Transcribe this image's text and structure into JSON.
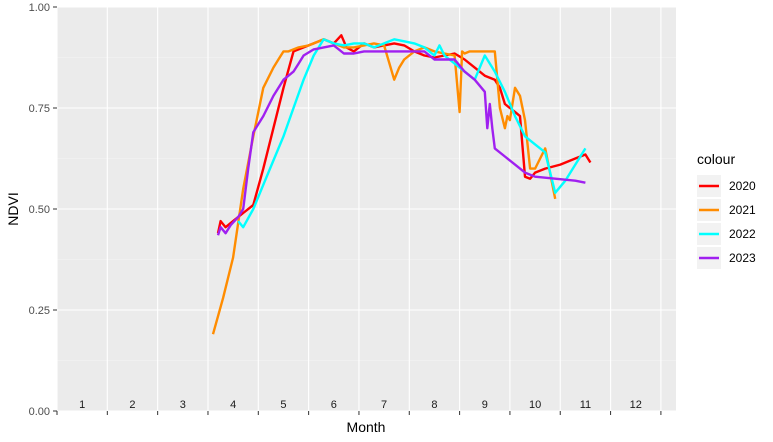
{
  "chart_data": {
    "type": "line",
    "xlabel": "Month",
    "ylabel": "NDVI",
    "xlim": [
      0.5,
      12.8
    ],
    "ylim": [
      0,
      1
    ],
    "yticks": [
      0.0,
      0.25,
      0.5,
      0.75,
      1.0
    ],
    "ytick_labels": [
      "0.00",
      "0.25",
      "0.50",
      "0.75",
      "1.00"
    ],
    "month_labels": [
      "1",
      "2",
      "3",
      "4",
      "5",
      "6",
      "7",
      "8",
      "9",
      "10",
      "11",
      "12"
    ],
    "grid": true,
    "legend": {
      "title": "colour",
      "placement": "right"
    },
    "series": [
      {
        "name": "2020",
        "color": "#ff0000",
        "x": [
          3.7,
          3.75,
          3.85,
          4.0,
          4.2,
          4.4,
          4.6,
          4.8,
          5.0,
          5.2,
          5.4,
          5.6,
          5.8,
          6.0,
          6.15,
          6.2,
          6.25,
          6.4,
          6.6,
          6.8,
          7.0,
          7.2,
          7.4,
          7.6,
          7.8,
          8.0,
          8.2,
          8.4,
          8.6,
          8.8,
          9.0,
          9.2,
          9.3,
          9.4,
          9.5,
          9.6,
          9.7,
          9.8,
          9.9,
          10.0,
          10.2,
          10.5,
          10.8,
          11.0,
          11.1
        ],
        "y": [
          0.44,
          0.47,
          0.455,
          0.47,
          0.49,
          0.51,
          0.6,
          0.7,
          0.8,
          0.89,
          0.9,
          0.91,
          0.92,
          0.91,
          0.93,
          0.915,
          0.9,
          0.89,
          0.91,
          0.9,
          0.905,
          0.91,
          0.905,
          0.89,
          0.88,
          0.875,
          0.88,
          0.885,
          0.87,
          0.85,
          0.83,
          0.82,
          0.8,
          0.76,
          0.75,
          0.74,
          0.73,
          0.58,
          0.575,
          0.59,
          0.6,
          0.61,
          0.625,
          0.635,
          0.615
        ]
      },
      {
        "name": "2021",
        "color": "#ff8c00",
        "x": [
          3.6,
          3.8,
          4.0,
          4.2,
          4.4,
          4.6,
          4.8,
          4.9,
          5.0,
          5.1,
          5.3,
          5.5,
          5.6,
          5.7,
          5.8,
          5.9,
          6.0,
          6.2,
          6.4,
          6.6,
          6.8,
          7.0,
          7.2,
          7.3,
          7.4,
          7.6,
          7.8,
          8.0,
          8.2,
          8.4,
          8.5,
          8.55,
          8.6,
          8.7,
          8.8,
          9.0,
          9.2,
          9.3,
          9.4,
          9.45,
          9.5,
          9.6,
          9.7,
          9.8,
          9.9,
          10.0,
          10.2,
          10.4
        ],
        "y": [
          0.19,
          0.28,
          0.38,
          0.55,
          0.68,
          0.8,
          0.85,
          0.87,
          0.89,
          0.89,
          0.9,
          0.905,
          0.91,
          0.915,
          0.92,
          0.915,
          0.91,
          0.9,
          0.9,
          0.905,
          0.91,
          0.905,
          0.82,
          0.85,
          0.87,
          0.89,
          0.9,
          0.89,
          0.885,
          0.88,
          0.74,
          0.89,
          0.885,
          0.89,
          0.89,
          0.89,
          0.89,
          0.75,
          0.7,
          0.73,
          0.72,
          0.8,
          0.78,
          0.72,
          0.6,
          0.6,
          0.65,
          0.525
        ]
      },
      {
        "name": "2022",
        "color": "#00ffff",
        "x": [
          4.1,
          4.2,
          4.4,
          4.6,
          4.8,
          5.0,
          5.2,
          5.4,
          5.6,
          5.8,
          6.0,
          6.2,
          6.4,
          6.6,
          6.8,
          7.0,
          7.2,
          7.4,
          7.6,
          7.8,
          8.0,
          8.1,
          8.2,
          8.4,
          8.6,
          8.8,
          9.0,
          9.2,
          9.4,
          9.6,
          9.8,
          10.0,
          10.2,
          10.4,
          10.6,
          10.8,
          11.0
        ],
        "y": [
          0.47,
          0.455,
          0.5,
          0.56,
          0.62,
          0.68,
          0.75,
          0.82,
          0.88,
          0.92,
          0.91,
          0.905,
          0.91,
          0.91,
          0.9,
          0.91,
          0.92,
          0.915,
          0.91,
          0.9,
          0.88,
          0.905,
          0.88,
          0.86,
          0.84,
          0.82,
          0.88,
          0.84,
          0.79,
          0.73,
          0.68,
          0.66,
          0.64,
          0.54,
          0.57,
          0.61,
          0.65
        ]
      },
      {
        "name": "2023",
        "color": "#a020f0",
        "x": [
          3.7,
          3.75,
          3.85,
          3.95,
          4.1,
          4.2,
          4.3,
          4.4,
          4.6,
          4.8,
          5.0,
          5.1,
          5.2,
          5.3,
          5.4,
          5.6,
          5.8,
          6.0,
          6.2,
          6.4,
          6.6,
          6.8,
          7.0,
          7.2,
          7.4,
          7.6,
          7.8,
          8.0,
          8.2,
          8.4,
          8.6,
          8.8,
          9.0,
          9.05,
          9.1,
          9.15,
          9.2,
          9.4,
          9.6,
          9.8,
          10.0,
          10.4,
          10.8,
          11.0
        ],
        "y": [
          0.435,
          0.455,
          0.44,
          0.46,
          0.48,
          0.5,
          0.6,
          0.69,
          0.73,
          0.78,
          0.82,
          0.83,
          0.84,
          0.86,
          0.88,
          0.895,
          0.9,
          0.905,
          0.885,
          0.885,
          0.89,
          0.89,
          0.89,
          0.89,
          0.89,
          0.89,
          0.89,
          0.87,
          0.87,
          0.87,
          0.84,
          0.82,
          0.79,
          0.7,
          0.76,
          0.7,
          0.65,
          0.63,
          0.61,
          0.59,
          0.58,
          0.575,
          0.57,
          0.565
        ]
      }
    ]
  }
}
